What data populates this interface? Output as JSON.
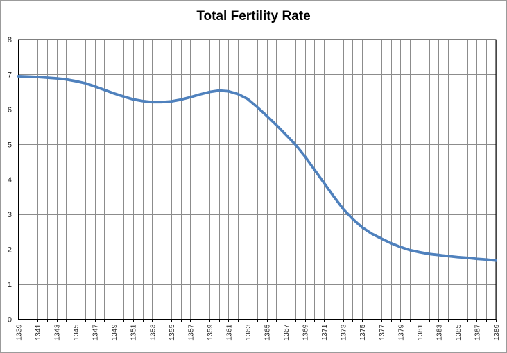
{
  "chart_data": {
    "type": "line",
    "title": "Total Fertility Rate",
    "xlabel": "",
    "ylabel": "",
    "x": [
      1339,
      1340,
      1341,
      1342,
      1343,
      1344,
      1345,
      1346,
      1347,
      1348,
      1349,
      1350,
      1351,
      1352,
      1353,
      1354,
      1355,
      1356,
      1357,
      1358,
      1359,
      1360,
      1361,
      1362,
      1363,
      1364,
      1365,
      1366,
      1367,
      1368,
      1369,
      1370,
      1371,
      1372,
      1373,
      1374,
      1375,
      1376,
      1377,
      1378,
      1379,
      1380,
      1381,
      1382,
      1383,
      1384,
      1385,
      1386,
      1387,
      1388,
      1389
    ],
    "series": [
      {
        "name": "Total Fertility Rate",
        "values": [
          6.95,
          6.94,
          6.93,
          6.91,
          6.89,
          6.86,
          6.81,
          6.75,
          6.66,
          6.56,
          6.46,
          6.37,
          6.29,
          6.24,
          6.21,
          6.21,
          6.23,
          6.28,
          6.35,
          6.43,
          6.5,
          6.54,
          6.52,
          6.44,
          6.3,
          6.07,
          5.82,
          5.56,
          5.28,
          5.0,
          4.66,
          4.28,
          3.9,
          3.52,
          3.16,
          2.87,
          2.63,
          2.45,
          2.31,
          2.18,
          2.07,
          1.98,
          1.92,
          1.87,
          1.84,
          1.81,
          1.78,
          1.76,
          1.73,
          1.71,
          1.68
        ]
      }
    ],
    "ylim": [
      0,
      8
    ],
    "y_ticks": [
      0,
      1,
      2,
      3,
      4,
      5,
      6,
      7,
      8
    ],
    "x_tick_labels": [
      "1339",
      "1341",
      "1343",
      "1345",
      "1347",
      "1349",
      "1351",
      "1353",
      "1355",
      "1357",
      "1359",
      "1361",
      "1363",
      "1365",
      "1367",
      "1369",
      "1371",
      "1373",
      "1375",
      "1377",
      "1379",
      "1381",
      "1383",
      "1385",
      "1387",
      "1389"
    ],
    "x_tick_step": 2,
    "grid": "both",
    "legend": "none",
    "x_label_rotation_deg": -90,
    "colors": {
      "line": "#4F81BD",
      "gridline": "#8C8C8C",
      "axis_border": "#000000",
      "tick_text": "#1F1F1F",
      "background": "#FFFFFF",
      "figure_border": "#9B9B9B"
    }
  }
}
